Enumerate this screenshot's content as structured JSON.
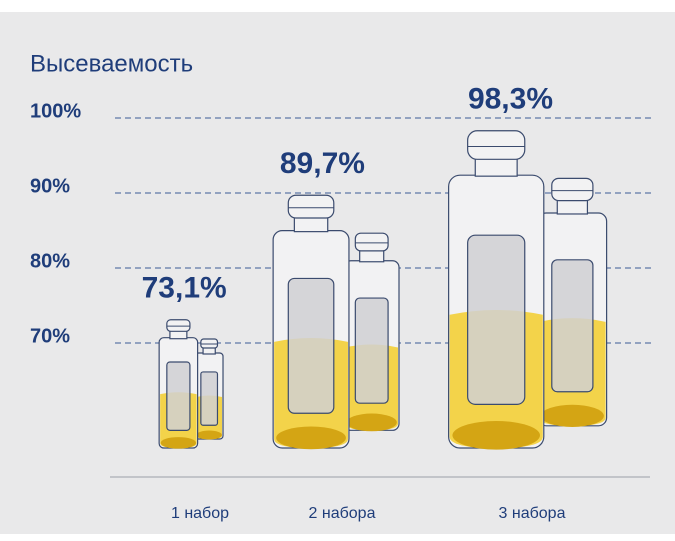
{
  "chart_data": {
    "type": "bottle",
    "title": "Высеваемость",
    "categories": [
      "1 набор",
      "2 набора",
      "3 набора"
    ],
    "values": [
      73.1,
      89.7,
      98.3
    ],
    "value_labels": [
      "73,1%",
      "89,7%",
      "98,3%"
    ],
    "color": "#f3d34a",
    "ylim": [
      56,
      100
    ],
    "yticks": [
      {
        "value": 70,
        "label": "70%"
      },
      {
        "value": 80,
        "label": "80%"
      },
      {
        "value": 90,
        "label": "90%"
      },
      {
        "value": 100,
        "label": "100%"
      }
    ],
    "grid": true
  }
}
